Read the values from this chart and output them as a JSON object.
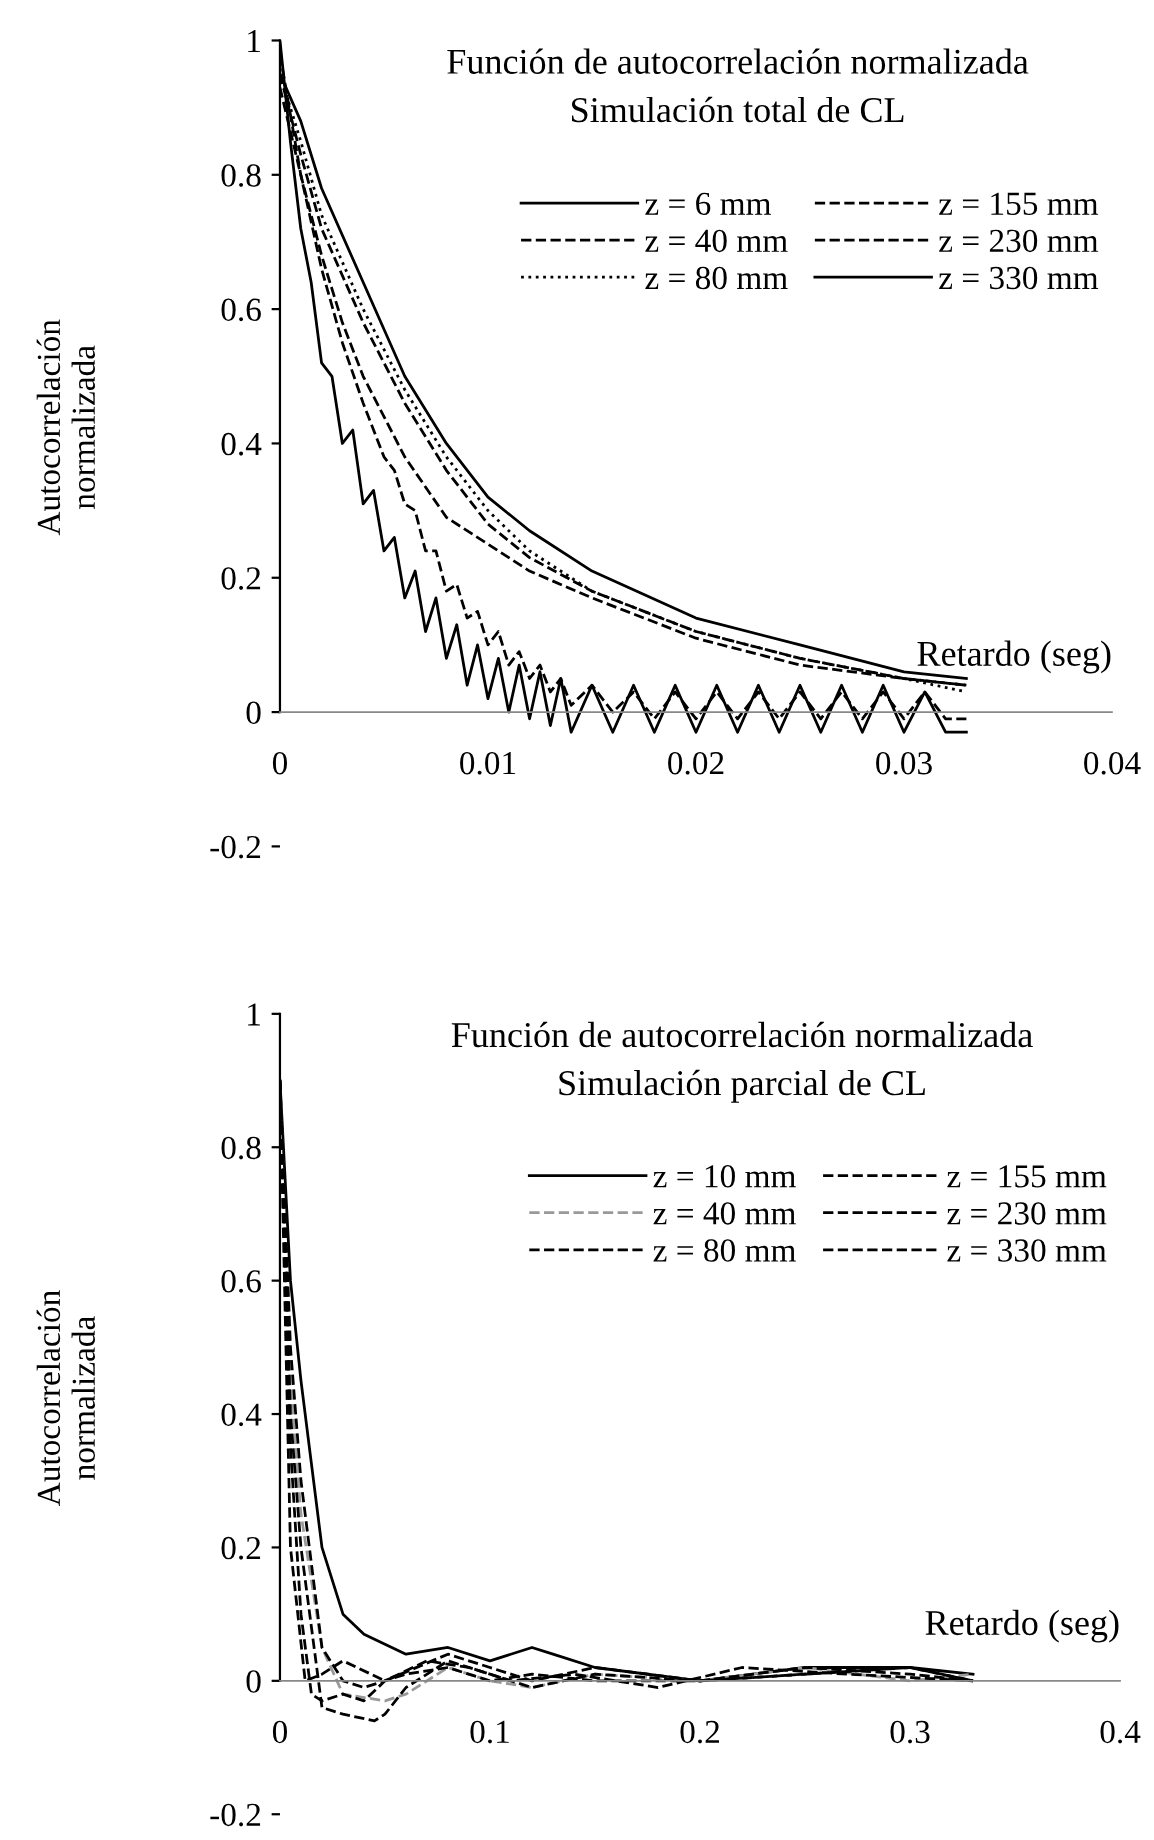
{
  "chart_data": [
    {
      "type": "line",
      "title": "Función de autocorrelación normalizada",
      "subtitle": "Simulación total de CL",
      "xlabel": "Retardo (seg)",
      "ylabel": "Autocorrelación normalizada",
      "xlim": [
        0,
        0.04
      ],
      "ylim": [
        -0.2,
        1
      ],
      "xticks": [
        0,
        0.01,
        0.02,
        0.03,
        0.04
      ],
      "yticks": [
        -0.2,
        0,
        0.2,
        0.4,
        0.6,
        0.8,
        1
      ],
      "grid": false,
      "legend": "top right",
      "marker": "none",
      "series": [
        {
          "name": "z = 6 mm",
          "color": "#000000",
          "line_style": "solid",
          "x": [
            0,
            0.0005,
            0.001,
            0.0015,
            0.002,
            0.0025,
            0.003,
            0.0035,
            0.004,
            0.0045,
            0.005,
            0.0055,
            0.006,
            0.0065,
            0.007,
            0.0075,
            0.008,
            0.0085,
            0.009,
            0.0095,
            0.01,
            0.0105,
            0.011,
            0.0115,
            0.012,
            0.0125,
            0.013,
            0.0135,
            0.014,
            0.015,
            0.016,
            0.017,
            0.018,
            0.019,
            0.02,
            0.021,
            0.022,
            0.023,
            0.024,
            0.025,
            0.026,
            0.027,
            0.028,
            0.029,
            0.03,
            0.031,
            0.032,
            0.033
          ],
          "values": [
            1.0,
            0.85,
            0.72,
            0.64,
            0.52,
            0.5,
            0.4,
            0.42,
            0.31,
            0.33,
            0.24,
            0.26,
            0.17,
            0.21,
            0.12,
            0.17,
            0.08,
            0.13,
            0.04,
            0.1,
            0.02,
            0.08,
            0.0,
            0.07,
            -0.01,
            0.06,
            -0.02,
            0.05,
            -0.03,
            0.04,
            -0.03,
            0.04,
            -0.03,
            0.04,
            -0.03,
            0.04,
            -0.03,
            0.04,
            -0.03,
            0.04,
            -0.03,
            0.04,
            -0.03,
            0.04,
            -0.03,
            0.03,
            -0.03,
            -0.03
          ]
        },
        {
          "name": "z = 40 mm",
          "color": "#000000",
          "line_style": "dashed",
          "x": [
            0,
            0.001,
            0.002,
            0.003,
            0.004,
            0.005,
            0.0055,
            0.006,
            0.0065,
            0.007,
            0.0075,
            0.008,
            0.0085,
            0.009,
            0.0095,
            0.01,
            0.0105,
            0.011,
            0.0115,
            0.012,
            0.0125,
            0.013,
            0.0135,
            0.014,
            0.015,
            0.016,
            0.017,
            0.018,
            0.019,
            0.02,
            0.021,
            0.022,
            0.023,
            0.024,
            0.025,
            0.026,
            0.027,
            0.028,
            0.029,
            0.03,
            0.031,
            0.032,
            0.033
          ],
          "values": [
            0.98,
            0.8,
            0.66,
            0.55,
            0.46,
            0.38,
            0.36,
            0.31,
            0.3,
            0.24,
            0.24,
            0.18,
            0.19,
            0.14,
            0.15,
            0.1,
            0.12,
            0.07,
            0.09,
            0.05,
            0.07,
            0.03,
            0.05,
            0.01,
            0.04,
            0.0,
            0.03,
            -0.01,
            0.03,
            -0.01,
            0.03,
            -0.01,
            0.03,
            -0.01,
            0.03,
            -0.01,
            0.03,
            -0.01,
            0.03,
            -0.01,
            0.03,
            -0.01,
            -0.01
          ]
        },
        {
          "name": "z = 80 mm",
          "color": "#000000",
          "line_style": "dotted",
          "x": [
            0,
            0.001,
            0.002,
            0.004,
            0.006,
            0.008,
            0.01,
            0.012,
            0.015,
            0.02,
            0.025,
            0.03,
            0.033
          ],
          "values": [
            0.95,
            0.85,
            0.74,
            0.6,
            0.48,
            0.38,
            0.3,
            0.24,
            0.18,
            0.12,
            0.08,
            0.05,
            0.03
          ]
        },
        {
          "name": "z = 155 mm",
          "color": "#000000",
          "line_style": "dashed",
          "x": [
            0,
            0.001,
            0.002,
            0.004,
            0.006,
            0.008,
            0.01,
            0.012,
            0.015,
            0.02,
            0.025,
            0.03,
            0.033
          ],
          "values": [
            0.95,
            0.83,
            0.72,
            0.58,
            0.46,
            0.36,
            0.28,
            0.23,
            0.18,
            0.12,
            0.08,
            0.05,
            0.04
          ]
        },
        {
          "name": "z = 230 mm",
          "color": "#000000",
          "line_style": "dashed",
          "x": [
            0,
            0.001,
            0.002,
            0.003,
            0.004,
            0.006,
            0.008,
            0.01,
            0.012,
            0.015,
            0.02,
            0.025,
            0.03,
            0.033
          ],
          "values": [
            0.93,
            0.8,
            0.68,
            0.58,
            0.5,
            0.38,
            0.29,
            0.25,
            0.21,
            0.17,
            0.11,
            0.07,
            0.05,
            0.04
          ]
        },
        {
          "name": "z = 330 mm",
          "color": "#000000",
          "line_style": "solid",
          "x": [
            0,
            0.001,
            0.002,
            0.004,
            0.006,
            0.008,
            0.01,
            0.012,
            0.015,
            0.02,
            0.025,
            0.03,
            0.033
          ],
          "values": [
            0.95,
            0.88,
            0.78,
            0.64,
            0.5,
            0.4,
            0.32,
            0.27,
            0.21,
            0.14,
            0.1,
            0.06,
            0.05
          ]
        }
      ]
    },
    {
      "type": "line",
      "title": "Función de autocorrelación normalizada",
      "subtitle": "Simulación parcial de CL",
      "xlabel": "Retardo (seg)",
      "ylabel": "Autocorrelación normalizada",
      "xlim": [
        0,
        0.4
      ],
      "ylim": [
        -0.2,
        1
      ],
      "xticks": [
        0,
        0.1,
        0.2,
        0.3,
        0.4
      ],
      "yticks": [
        -0.2,
        0,
        0.2,
        0.4,
        0.6,
        0.8,
        1
      ],
      "grid": false,
      "legend": "top right",
      "marker": "none",
      "series": [
        {
          "name": "z = 10 mm",
          "color": "#000000",
          "line_style": "solid",
          "x": [
            0,
            0.005,
            0.01,
            0.02,
            0.03,
            0.04,
            0.06,
            0.08,
            0.1,
            0.12,
            0.13,
            0.15,
            0.2,
            0.25,
            0.3,
            0.33
          ],
          "values": [
            0.9,
            0.6,
            0.45,
            0.2,
            0.1,
            0.07,
            0.04,
            0.05,
            0.03,
            0.05,
            0.04,
            0.02,
            0.0,
            0.02,
            0.02,
            0.01
          ]
        },
        {
          "name": "z = 40 mm",
          "color": "#999999",
          "line_style": "dashed",
          "x": [
            0,
            0.005,
            0.01,
            0.02,
            0.03,
            0.05,
            0.06,
            0.08,
            0.1,
            0.12,
            0.15,
            0.2,
            0.25,
            0.3,
            0.33
          ],
          "values": [
            0.9,
            0.45,
            0.25,
            0.05,
            -0.02,
            -0.03,
            -0.02,
            0.02,
            0.0,
            -0.01,
            0.01,
            0.0,
            0.02,
            0.0,
            0.01
          ]
        },
        {
          "name": "z = 80 mm",
          "color": "#000000",
          "line_style": "dashed",
          "x": [
            0,
            0.005,
            0.012,
            0.02,
            0.03,
            0.05,
            0.08,
            0.1,
            0.12,
            0.15,
            0.2,
            0.25,
            0.3,
            0.33
          ],
          "values": [
            0.9,
            0.2,
            0.0,
            0.01,
            0.03,
            0.0,
            0.04,
            0.02,
            0.0,
            0.02,
            0.0,
            0.01,
            0.02,
            0.0
          ]
        },
        {
          "name": "z = 155 mm",
          "color": "#000000",
          "line_style": "dashed",
          "x": [
            0,
            0.005,
            0.01,
            0.02,
            0.03,
            0.045,
            0.05,
            0.06,
            0.08,
            0.1,
            0.12,
            0.15,
            0.2,
            0.25,
            0.3,
            0.33
          ],
          "values": [
            0.9,
            0.4,
            0.2,
            -0.04,
            -0.05,
            -0.06,
            -0.05,
            -0.01,
            0.03,
            0.01,
            -0.01,
            0.01,
            0.0,
            0.01,
            0.02,
            0.0
          ]
        },
        {
          "name": "z = 230 mm",
          "color": "#000000",
          "line_style": "dashed",
          "x": [
            0,
            0.005,
            0.01,
            0.015,
            0.02,
            0.03,
            0.04,
            0.05,
            0.07,
            0.09,
            0.11,
            0.14,
            0.18,
            0.22,
            0.27,
            0.33
          ],
          "values": [
            0.9,
            0.35,
            0.1,
            -0.02,
            -0.03,
            -0.02,
            -0.03,
            0.0,
            0.03,
            0.02,
            0.0,
            0.01,
            -0.01,
            0.02,
            0.01,
            0.0
          ]
        },
        {
          "name": "z = 330 mm",
          "color": "#000000",
          "line_style": "dashed",
          "x": [
            0,
            0.005,
            0.01,
            0.02,
            0.03,
            0.04,
            0.06,
            0.08,
            0.1,
            0.12,
            0.15,
            0.2,
            0.25,
            0.3,
            0.33
          ],
          "values": [
            0.9,
            0.5,
            0.3,
            0.05,
            0.0,
            -0.01,
            0.01,
            0.02,
            0.0,
            0.01,
            0.0,
            0.0,
            0.02,
            0.01,
            0.0
          ]
        }
      ]
    }
  ]
}
